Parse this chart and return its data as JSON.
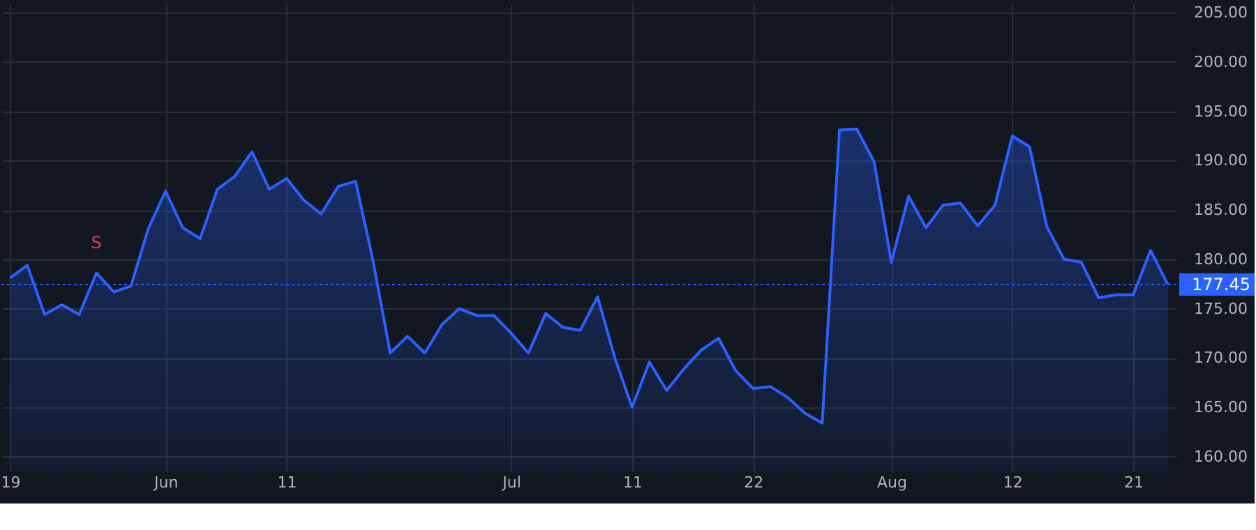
{
  "chart_data": {
    "type": "area",
    "categories": [
      "19",
      null,
      null,
      null,
      null,
      null,
      null,
      null,
      null,
      "Jun",
      null,
      null,
      null,
      null,
      null,
      null,
      "11",
      null,
      null,
      null,
      null,
      null,
      null,
      null,
      null,
      null,
      null,
      null,
      null,
      "Jul",
      null,
      null,
      null,
      null,
      null,
      null,
      "11",
      null,
      null,
      null,
      null,
      null,
      null,
      "22",
      null,
      null,
      null,
      null,
      null,
      null,
      null,
      "Aug",
      null,
      null,
      null,
      null,
      null,
      null,
      "12",
      null,
      null,
      null,
      null,
      null,
      null,
      "21",
      null,
      null
    ],
    "series": [
      {
        "color": "#2962ff",
        "values": [
          178.1,
          179.4,
          174.4,
          175.4,
          174.4,
          178.6,
          176.7,
          177.3,
          183.1,
          186.9,
          183.2,
          182.1,
          187.1,
          188.4,
          190.9,
          187.1,
          188.2,
          186.0,
          184.6,
          187.4,
          187.9,
          179.9,
          170.5,
          172.2,
          170.5,
          173.4,
          175.0,
          174.3,
          174.3,
          172.5,
          170.5,
          174.5,
          173.1,
          172.8,
          176.2,
          170.0,
          165.0,
          169.6,
          166.7,
          168.9,
          170.8,
          172.0,
          168.7,
          166.9,
          167.1,
          166.0,
          164.4,
          163.4,
          193.1,
          193.2,
          189.9,
          179.7,
          186.4,
          183.2,
          185.5,
          185.7,
          183.4,
          185.5,
          192.5,
          191.4,
          183.3,
          180.0,
          179.7,
          176.1,
          176.4,
          176.4,
          180.9,
          177.45
        ]
      }
    ],
    "ylim": [
      158.5,
      206
    ],
    "yticks": [
      {
        "value": 160,
        "label": "160.00"
      },
      {
        "value": 165,
        "label": "165.00"
      },
      {
        "value": 170,
        "label": "170.00"
      },
      {
        "value": 175,
        "label": "175.00"
      },
      {
        "value": 180,
        "label": "180.00"
      },
      {
        "value": 185,
        "label": "185.00"
      },
      {
        "value": 190,
        "label": "190.00"
      },
      {
        "value": 195,
        "label": "195.00"
      },
      {
        "value": 200,
        "label": "200.00"
      },
      {
        "value": 205,
        "label": "205.00"
      }
    ],
    "ref_lines": [
      {
        "axis": "y",
        "value": 177.45,
        "label": "177.45",
        "color": "#2962ff",
        "line_style": "dotted"
      }
    ],
    "annotations": [
      {
        "text": "S",
        "y": 178.6
      }
    ],
    "grid": true,
    "marker": "none",
    "line_style": "solid"
  }
}
